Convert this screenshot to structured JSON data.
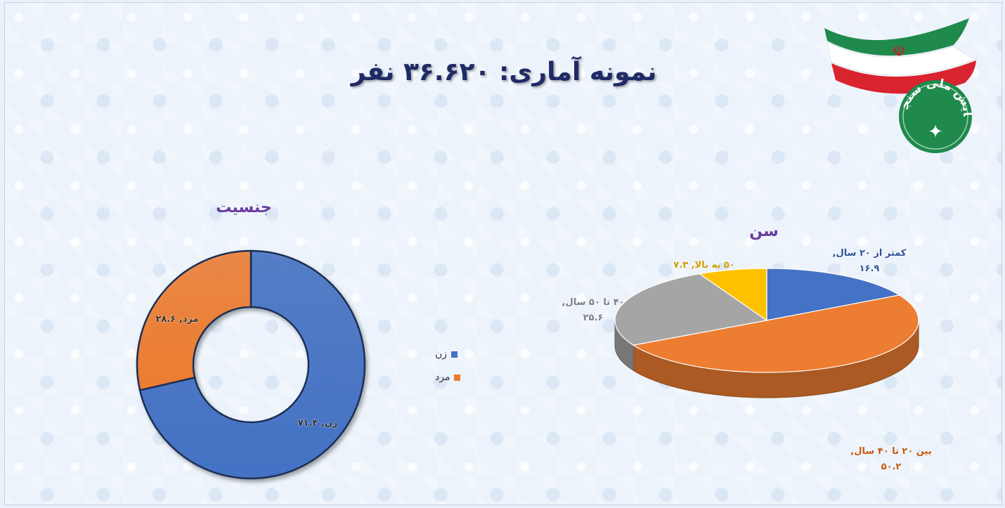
{
  "title": "نمونه آماری: ۳۶.۶۲۰ نفر",
  "logo": {
    "text": "مرکز پیمایش ملی سنجی اشراف",
    "colors": {
      "green": "#1f8a4c",
      "red": "#d9232e",
      "white": "#ffffff"
    },
    "icon": "iran-flag-ribbon-logo"
  },
  "chart_data": [
    {
      "type": "pie",
      "variant": "donut",
      "title": "جنسیت",
      "categories": [
        "زن",
        "مرد"
      ],
      "values": [
        71.4,
        28.6
      ],
      "data_labels": [
        "زن, ۷۱.۴",
        "مرد, ۲۸.۶"
      ],
      "colors": [
        "#4472c4",
        "#ed7d31"
      ],
      "legend": {
        "placement": "right",
        "entries": [
          "زن",
          "مرد"
        ]
      }
    },
    {
      "type": "pie",
      "variant": "3d",
      "title": "سن",
      "categories": [
        "کمتر از ۲۰ سال",
        "بین ۲۰ تا ۴۰ سال",
        "۴۰ تا ۵۰ سال",
        "۵۰ به بالا"
      ],
      "values": [
        16.9,
        50.2,
        25.6,
        7.3
      ],
      "data_labels": [
        [
          "کمتر از ۲۰ سال,",
          "۱۶.۹"
        ],
        [
          "بین ۲۰ تا ۴۰ سال,",
          "۵۰.۲"
        ],
        [
          "۴۰ تا ۵۰ سال,",
          "۲۵.۶"
        ],
        [
          "۵۰ به بالا, ۷.۳"
        ]
      ],
      "colors": [
        "#4472c4",
        "#ed7d31",
        "#a5a5a5",
        "#ffc000"
      ],
      "label_colors": [
        "#2f5597",
        "#c55a11",
        "#7f7f7f",
        "#d39e00"
      ]
    }
  ]
}
